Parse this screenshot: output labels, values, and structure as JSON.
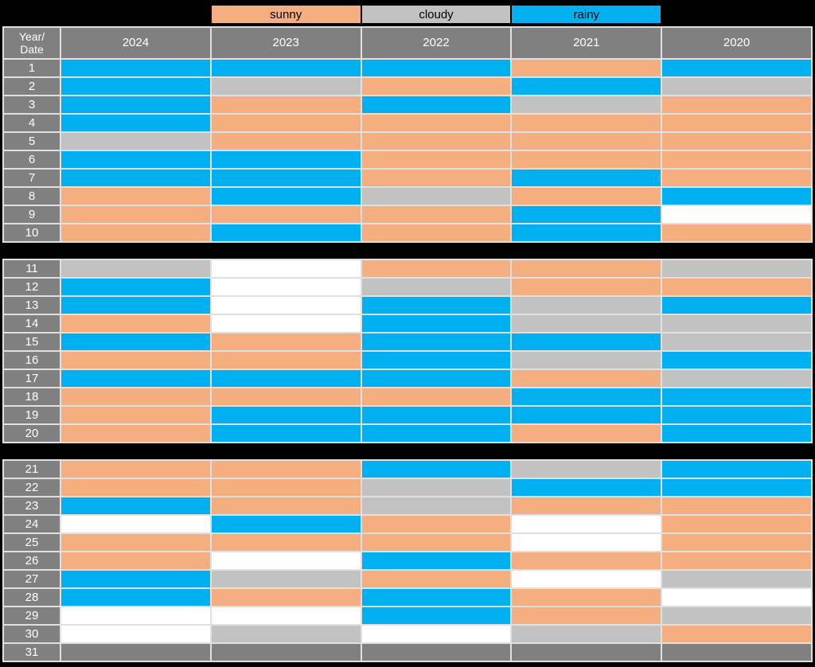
{
  "colors": {
    "background": "#000000",
    "grid_line": "#E0E0E0",
    "header_bg": "#808080",
    "header_text": "#FFFFFF",
    "legend_text": "#000000",
    "sunny": "#F4AE80",
    "cloudy": "#C2C2C2",
    "rainy": "#00B0F0",
    "none": "#FFFFFF",
    "blank": "#808080"
  },
  "legend": {
    "items": [
      {
        "label": "sunny",
        "key": "sunny"
      },
      {
        "label": "cloudy",
        "key": "cloudy"
      },
      {
        "label": "rainy",
        "key": "rainy"
      }
    ]
  },
  "header": {
    "corner_lines": [
      "Year/",
      "Date"
    ],
    "years": [
      "2024",
      "2023",
      "2022",
      "2021",
      "2020"
    ]
  },
  "chart_data": {
    "type": "heatmap",
    "title": "",
    "x_categories": [
      "2024",
      "2023",
      "2022",
      "2021",
      "2020"
    ],
    "y_categories": [
      "1",
      "2",
      "3",
      "4",
      "5",
      "6",
      "7",
      "8",
      "9",
      "10",
      "11",
      "12",
      "13",
      "14",
      "15",
      "16",
      "17",
      "18",
      "19",
      "20",
      "21",
      "22",
      "23",
      "24",
      "25",
      "26",
      "27",
      "28",
      "29",
      "30",
      "31"
    ],
    "legend_entries": [
      "sunny",
      "cloudy",
      "rainy"
    ],
    "legend_position": "top",
    "grid": true,
    "value_meaning": "weather condition per date (row) and year (column); none = empty white cell, blank = gray unused cell",
    "sections": [
      {
        "rows": [
          {
            "date": "1",
            "values": [
              "rainy",
              "rainy",
              "rainy",
              "sunny",
              "rainy"
            ]
          },
          {
            "date": "2",
            "values": [
              "rainy",
              "cloudy",
              "sunny",
              "rainy",
              "cloudy"
            ]
          },
          {
            "date": "3",
            "values": [
              "rainy",
              "sunny",
              "rainy",
              "cloudy",
              "sunny"
            ]
          },
          {
            "date": "4",
            "values": [
              "rainy",
              "sunny",
              "sunny",
              "sunny",
              "sunny"
            ]
          },
          {
            "date": "5",
            "values": [
              "cloudy",
              "sunny",
              "sunny",
              "sunny",
              "sunny"
            ]
          },
          {
            "date": "6",
            "values": [
              "rainy",
              "rainy",
              "sunny",
              "sunny",
              "sunny"
            ]
          },
          {
            "date": "7",
            "values": [
              "rainy",
              "rainy",
              "sunny",
              "rainy",
              "sunny"
            ]
          },
          {
            "date": "8",
            "values": [
              "sunny",
              "rainy",
              "cloudy",
              "sunny",
              "rainy"
            ]
          },
          {
            "date": "9",
            "values": [
              "sunny",
              "sunny",
              "sunny",
              "rainy",
              "none"
            ]
          },
          {
            "date": "10",
            "values": [
              "sunny",
              "rainy",
              "sunny",
              "rainy",
              "sunny"
            ]
          }
        ]
      },
      {
        "rows": [
          {
            "date": "11",
            "values": [
              "cloudy",
              "none",
              "sunny",
              "sunny",
              "cloudy"
            ]
          },
          {
            "date": "12",
            "values": [
              "rainy",
              "none",
              "cloudy",
              "sunny",
              "sunny"
            ]
          },
          {
            "date": "13",
            "values": [
              "rainy",
              "none",
              "rainy",
              "cloudy",
              "rainy"
            ]
          },
          {
            "date": "14",
            "values": [
              "sunny",
              "none",
              "rainy",
              "cloudy",
              "cloudy"
            ]
          },
          {
            "date": "15",
            "values": [
              "rainy",
              "sunny",
              "rainy",
              "rainy",
              "cloudy"
            ]
          },
          {
            "date": "16",
            "values": [
              "sunny",
              "sunny",
              "rainy",
              "cloudy",
              "rainy"
            ]
          },
          {
            "date": "17",
            "values": [
              "rainy",
              "rainy",
              "rainy",
              "sunny",
              "cloudy"
            ]
          },
          {
            "date": "18",
            "values": [
              "sunny",
              "sunny",
              "sunny",
              "rainy",
              "rainy"
            ]
          },
          {
            "date": "19",
            "values": [
              "sunny",
              "rainy",
              "rainy",
              "rainy",
              "rainy"
            ]
          },
          {
            "date": "20",
            "values": [
              "sunny",
              "rainy",
              "rainy",
              "sunny",
              "rainy"
            ]
          }
        ]
      },
      {
        "rows": [
          {
            "date": "21",
            "values": [
              "sunny",
              "sunny",
              "rainy",
              "cloudy",
              "rainy"
            ]
          },
          {
            "date": "22",
            "values": [
              "sunny",
              "sunny",
              "cloudy",
              "rainy",
              "rainy"
            ]
          },
          {
            "date": "23",
            "values": [
              "rainy",
              "sunny",
              "cloudy",
              "sunny",
              "sunny"
            ]
          },
          {
            "date": "24",
            "values": [
              "none",
              "rainy",
              "sunny",
              "none",
              "sunny"
            ]
          },
          {
            "date": "25",
            "values": [
              "sunny",
              "sunny",
              "sunny",
              "none",
              "sunny"
            ]
          },
          {
            "date": "26",
            "values": [
              "sunny",
              "none",
              "rainy",
              "sunny",
              "sunny"
            ]
          },
          {
            "date": "27",
            "values": [
              "rainy",
              "cloudy",
              "sunny",
              "none",
              "cloudy"
            ]
          },
          {
            "date": "28",
            "values": [
              "rainy",
              "sunny",
              "rainy",
              "sunny",
              "none"
            ]
          },
          {
            "date": "29",
            "values": [
              "none",
              "none",
              "rainy",
              "sunny",
              "cloudy"
            ]
          },
          {
            "date": "30",
            "values": [
              "none",
              "cloudy",
              "none",
              "cloudy",
              "sunny"
            ]
          },
          {
            "date": "31",
            "values": [
              "blank",
              "blank",
              "blank",
              "blank",
              "blank"
            ]
          }
        ]
      }
    ]
  }
}
